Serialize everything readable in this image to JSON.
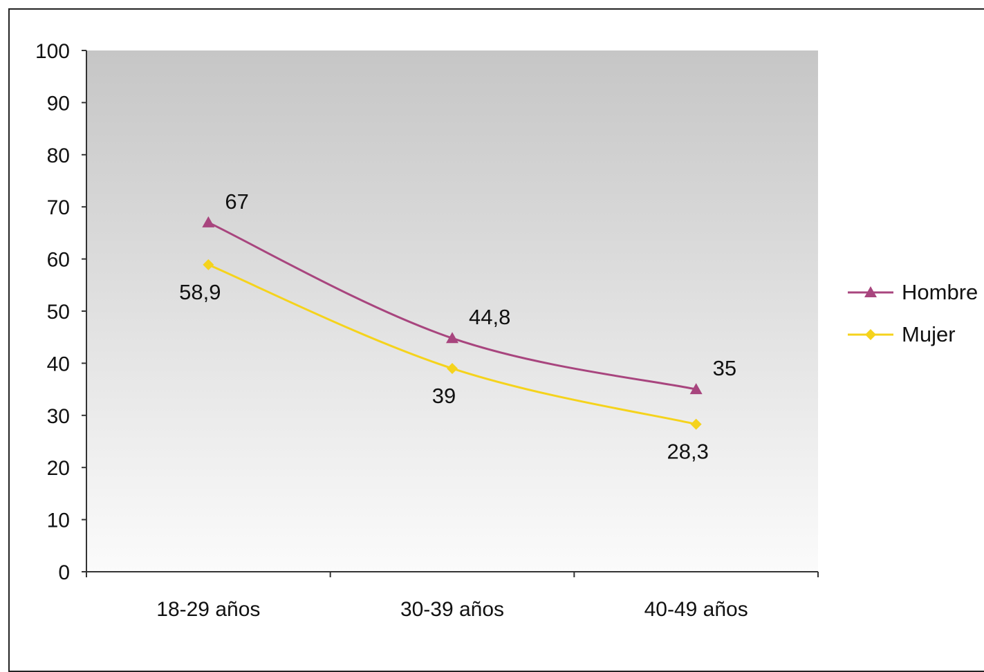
{
  "chart_data": {
    "type": "line",
    "categories": [
      "18-29 años",
      "30-39 años",
      "40-49 años"
    ],
    "series": [
      {
        "name": "Hombre",
        "values": [
          67,
          44.8,
          35
        ],
        "labels": [
          "67",
          "44,8",
          "35"
        ],
        "color": "#a8457e",
        "marker": "triangle"
      },
      {
        "name": "Mujer",
        "values": [
          58.9,
          39,
          28.3
        ],
        "labels": [
          "58,9",
          "39",
          "28,3"
        ],
        "color": "#f5d31c",
        "marker": "diamond"
      }
    ],
    "ylim": [
      0,
      100
    ],
    "yticks": [
      "0",
      "10",
      "20",
      "30",
      "40",
      "50",
      "60",
      "70",
      "80",
      "90",
      "100"
    ],
    "title": "",
    "xlabel": "",
    "ylabel": "",
    "grid": false,
    "legend": "right",
    "plot_background": "gradient gray to white"
  }
}
